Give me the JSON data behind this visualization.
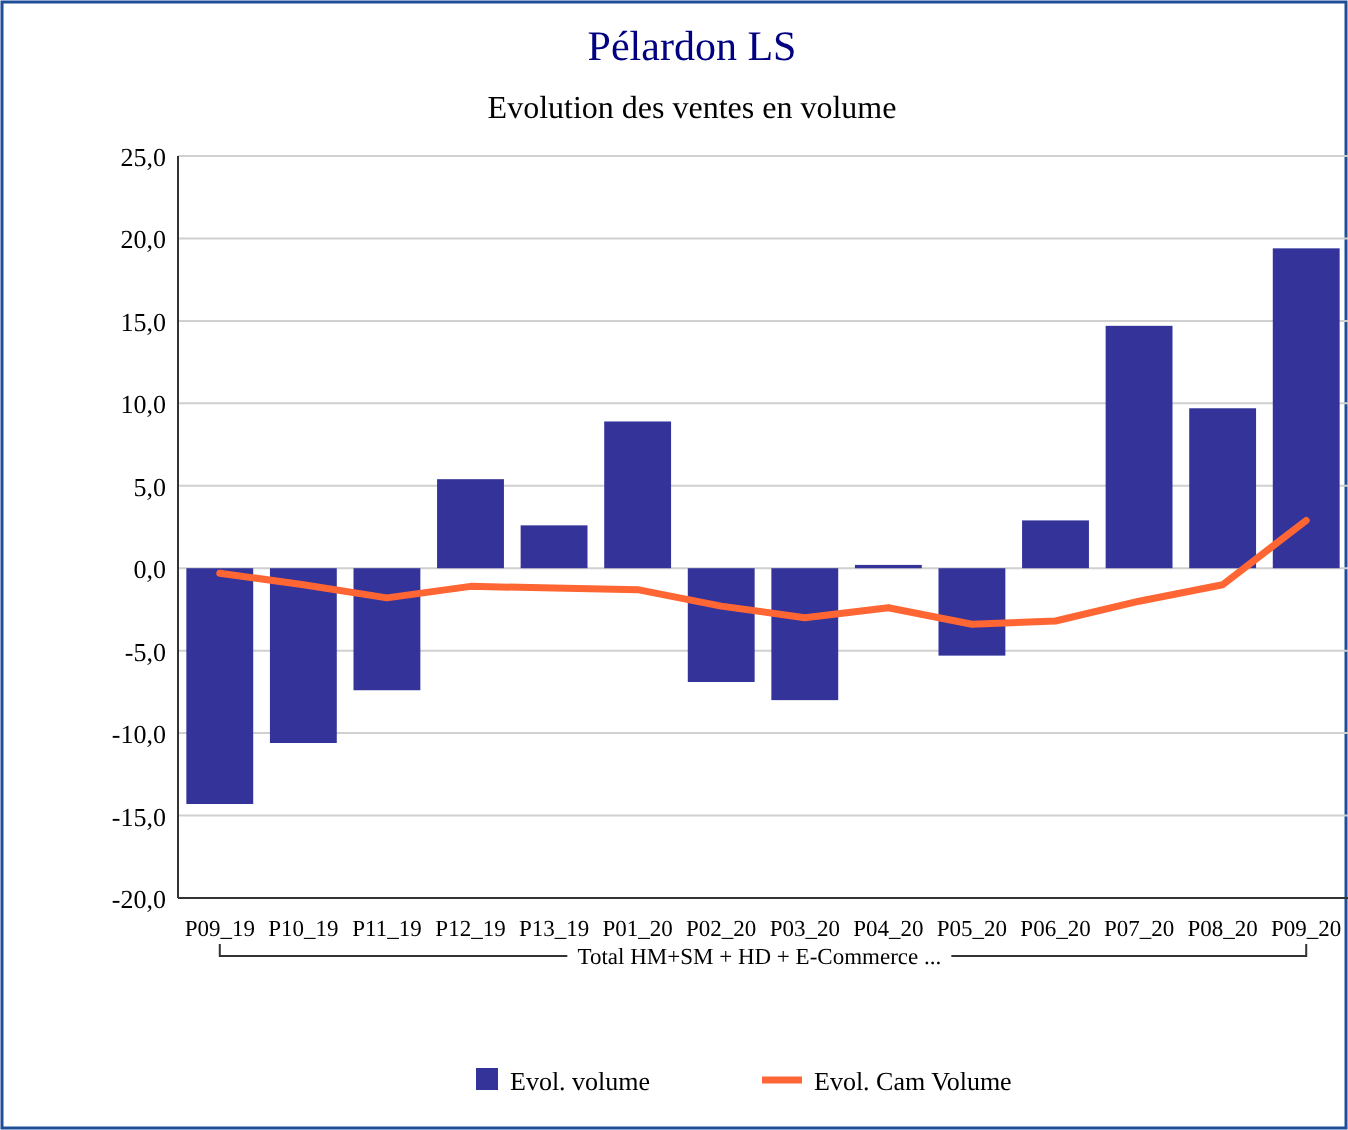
{
  "chart_data": {
    "type": "bar",
    "title": "Pélardon LS",
    "subtitle": "Evolution des ventes en volume",
    "xlabel": "Total HM+SM + HD + E-Commerce ...",
    "categories": [
      "P09_19",
      "P10_19",
      "P11_19",
      "P12_19",
      "P13_19",
      "P01_20",
      "P02_20",
      "P03_20",
      "P04_20",
      "P05_20",
      "P06_20",
      "P07_20",
      "P08_20",
      "P09_20"
    ],
    "series": [
      {
        "name": "Evol. volume",
        "color": "#333399",
        "values": [
          -14.3,
          -10.6,
          -7.4,
          5.4,
          2.6,
          8.9,
          -6.9,
          -8.0,
          0.2,
          -5.3,
          2.9,
          14.7,
          9.7,
          19.4
        ]
      },
      {
        "name": "Evol. Cam Volume",
        "type": "line",
        "color": "#ff6633",
        "values": [
          -0.3,
          -1.0,
          -1.8,
          -1.1,
          -1.2,
          -1.3,
          -2.3,
          -3.0,
          -2.4,
          -3.4,
          -3.2,
          -2.0,
          -1.0,
          2.9
        ]
      }
    ],
    "ylim": [
      -20,
      25
    ],
    "yticks": [
      {
        "value": -20,
        "label": "-20,0"
      },
      {
        "value": -15,
        "label": "-15,0"
      },
      {
        "value": -10,
        "label": "-10,0"
      },
      {
        "value": -5,
        "label": "-5,0"
      },
      {
        "value": 0,
        "label": "0,0"
      },
      {
        "value": 5,
        "label": "5,0"
      },
      {
        "value": 10,
        "label": "10,0"
      },
      {
        "value": 15,
        "label": "15,0"
      },
      {
        "value": 20,
        "label": "20,0"
      },
      {
        "value": 25,
        "label": "25,0"
      }
    ],
    "grid": "y",
    "legend": "bottom",
    "line_style": "solid",
    "marker": "none"
  }
}
